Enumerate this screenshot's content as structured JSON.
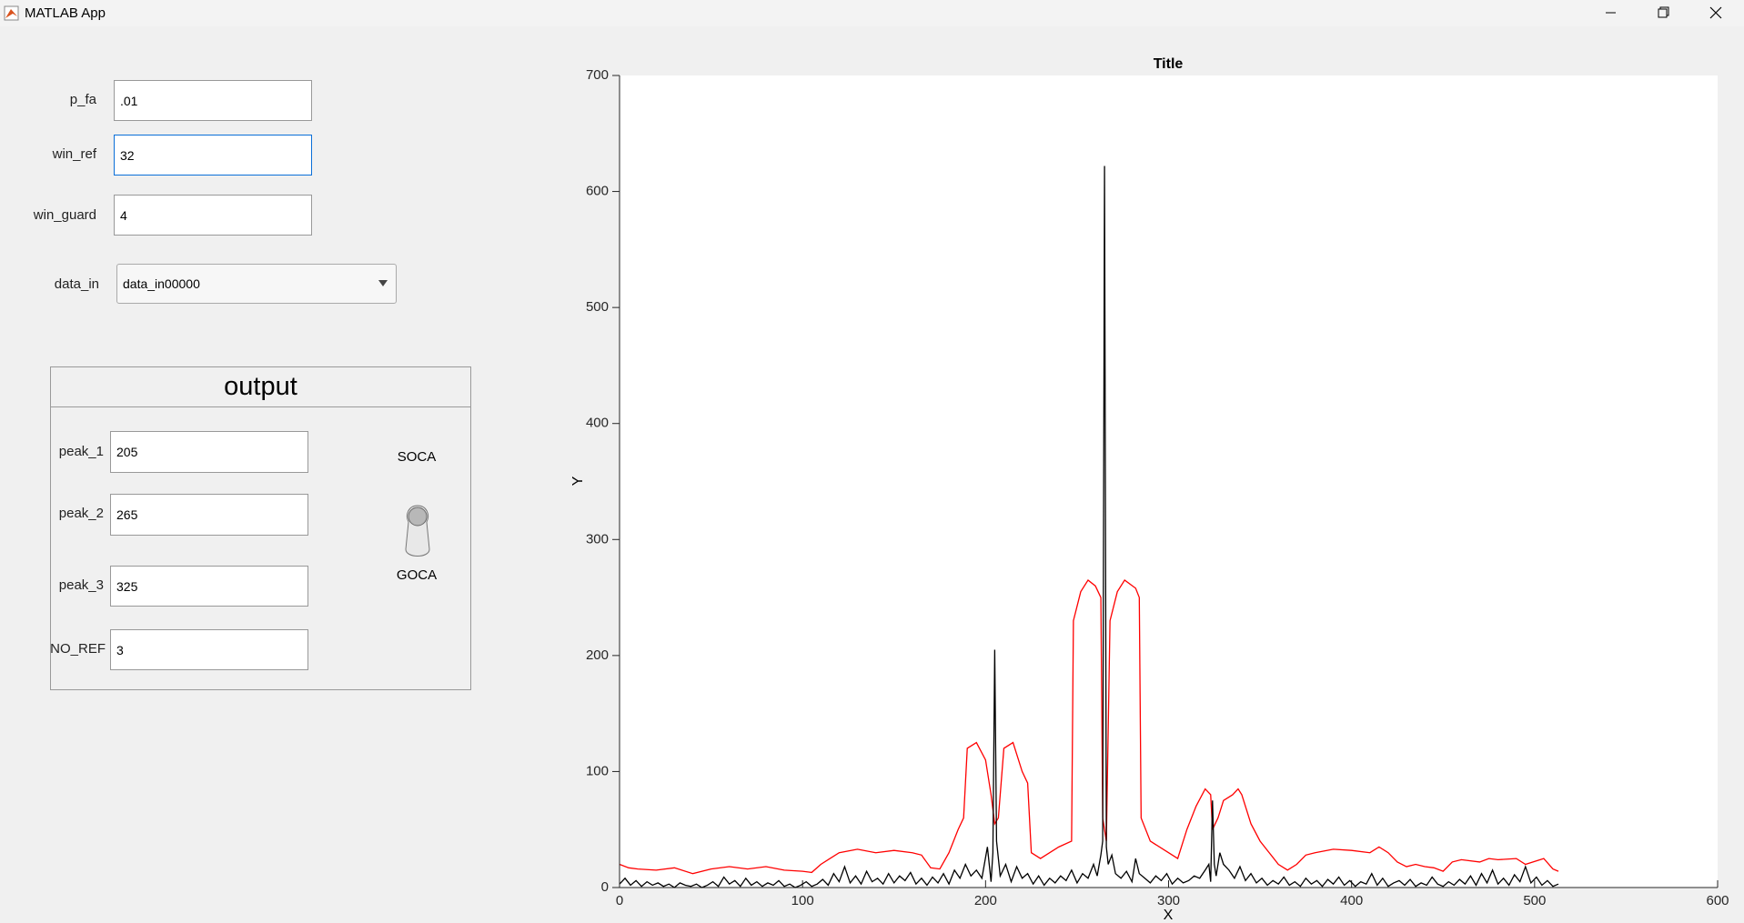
{
  "window": {
    "title": "MATLAB App"
  },
  "form": {
    "fields": [
      {
        "label": "p_fa",
        "value": ".01"
      },
      {
        "label": "win_ref",
        "value": "32"
      },
      {
        "label": "win_guard",
        "value": "4"
      }
    ],
    "dropdown": {
      "label": "data_in",
      "value": "data_in00000"
    }
  },
  "output": {
    "title": "output",
    "fields": [
      {
        "label": "peak_1",
        "value": "205"
      },
      {
        "label": "peak_2",
        "value": "265"
      },
      {
        "label": "peak_3",
        "value": "325"
      },
      {
        "label": "NO_REF",
        "value": "3"
      }
    ],
    "switch": {
      "top": "SOCA",
      "bottom": "GOCA"
    }
  },
  "chart_data": {
    "type": "line",
    "title": "Title",
    "x_label": "X",
    "y_label": "Y",
    "xlim": [
      0,
      600
    ],
    "ylim": [
      0,
      700
    ],
    "xticks": [
      0,
      100,
      200,
      300,
      400,
      500,
      600
    ],
    "yticks": [
      0,
      100,
      200,
      300,
      400,
      500,
      600,
      700
    ],
    "grid": false,
    "series": [
      {
        "color": "#ff0000",
        "x": [
          0,
          5,
          10,
          20,
          30,
          40,
          50,
          60,
          70,
          80,
          90,
          100,
          105,
          110,
          115,
          120,
          130,
          140,
          150,
          160,
          165,
          170,
          175,
          180,
          185,
          188,
          190,
          195,
          200,
          203,
          205,
          207,
          210,
          215,
          220,
          223,
          225,
          230,
          240,
          247,
          248,
          252,
          256,
          260,
          263,
          264,
          266,
          268,
          272,
          276,
          282,
          284,
          285,
          290,
          300,
          305,
          310,
          315,
          320,
          323,
          324,
          327,
          330,
          335,
          338,
          340,
          345,
          350,
          355,
          360,
          365,
          370,
          375,
          380,
          390,
          400,
          410,
          415,
          420,
          425,
          430,
          435,
          440,
          445,
          450,
          455,
          460,
          470,
          475,
          480,
          490,
          495,
          505,
          510,
          513
        ],
        "values": [
          20,
          17,
          16,
          15,
          17,
          12,
          16,
          18,
          16,
          18,
          15,
          14,
          13,
          20,
          25,
          30,
          33,
          30,
          32,
          30,
          28,
          17,
          16,
          30,
          50,
          60,
          120,
          125,
          110,
          80,
          55,
          60,
          120,
          125,
          100,
          90,
          30,
          25,
          35,
          40,
          230,
          255,
          265,
          260,
          250,
          60,
          40,
          230,
          255,
          265,
          258,
          250,
          60,
          40,
          30,
          25,
          50,
          70,
          85,
          80,
          50,
          60,
          75,
          80,
          85,
          80,
          55,
          40,
          30,
          20,
          15,
          20,
          28,
          30,
          33,
          32,
          30,
          35,
          30,
          22,
          18,
          20,
          18,
          17,
          14,
          22,
          24,
          22,
          25,
          24,
          25,
          20,
          25,
          16,
          14
        ]
      },
      {
        "color": "#000000",
        "x": [
          0,
          3,
          6,
          9,
          12,
          15,
          18,
          21,
          24,
          27,
          30,
          33,
          36,
          39,
          42,
          45,
          48,
          51,
          54,
          57,
          60,
          63,
          66,
          69,
          72,
          75,
          78,
          81,
          84,
          87,
          90,
          93,
          96,
          99,
          102,
          105,
          108,
          111,
          114,
          117,
          120,
          123,
          126,
          129,
          132,
          135,
          138,
          141,
          144,
          147,
          150,
          153,
          156,
          159,
          162,
          165,
          168,
          171,
          174,
          177,
          180,
          183,
          186,
          189,
          192,
          195,
          198,
          201,
          203,
          204,
          205,
          206,
          208,
          211,
          214,
          217,
          220,
          223,
          226,
          229,
          232,
          235,
          238,
          241,
          244,
          247,
          250,
          253,
          256,
          259,
          261,
          263,
          264,
          265,
          266,
          267,
          269,
          271,
          274,
          277,
          280,
          282,
          284,
          287,
          290,
          293,
          296,
          299,
          302,
          305,
          308,
          311,
          314,
          317,
          320,
          322,
          323,
          324,
          325,
          326,
          328,
          330,
          333,
          336,
          339,
          342,
          345,
          348,
          351,
          354,
          357,
          360,
          363,
          366,
          369,
          372,
          375,
          378,
          381,
          384,
          387,
          390,
          393,
          396,
          399,
          402,
          405,
          408,
          411,
          414,
          417,
          420,
          423,
          426,
          429,
          432,
          435,
          438,
          441,
          444,
          447,
          450,
          453,
          456,
          459,
          462,
          465,
          468,
          471,
          474,
          477,
          480,
          483,
          486,
          489,
          492,
          495,
          498,
          501,
          504,
          507,
          510,
          513
        ],
        "values": [
          3,
          8,
          2,
          6,
          1,
          5,
          2,
          4,
          1,
          3,
          0,
          4,
          2,
          1,
          3,
          0,
          2,
          5,
          1,
          9,
          3,
          6,
          1,
          8,
          2,
          5,
          1,
          4,
          2,
          6,
          1,
          3,
          0,
          2,
          5,
          1,
          3,
          7,
          2,
          12,
          5,
          18,
          4,
          10,
          3,
          14,
          5,
          8,
          3,
          12,
          4,
          10,
          6,
          13,
          3,
          8,
          2,
          9,
          4,
          12,
          3,
          15,
          8,
          20,
          10,
          15,
          8,
          35,
          5,
          30,
          205,
          40,
          10,
          20,
          5,
          18,
          8,
          12,
          3,
          10,
          2,
          8,
          4,
          10,
          6,
          15,
          4,
          12,
          8,
          20,
          10,
          28,
          40,
          622,
          35,
          20,
          28,
          12,
          8,
          14,
          5,
          25,
          12,
          8,
          4,
          10,
          6,
          12,
          3,
          8,
          4,
          6,
          10,
          8,
          15,
          20,
          5,
          75,
          20,
          10,
          30,
          20,
          15,
          8,
          18,
          6,
          12,
          4,
          8,
          2,
          6,
          3,
          9,
          2,
          5,
          1,
          8,
          3,
          6,
          1,
          7,
          3,
          9,
          2,
          6,
          1,
          5,
          3,
          12,
          2,
          8,
          1,
          4,
          6,
          2,
          7,
          1,
          4,
          2,
          9,
          3,
          1,
          5,
          2,
          7,
          3,
          10,
          2,
          12,
          4,
          15,
          3,
          8,
          2,
          11,
          5,
          18,
          4,
          9,
          2,
          6,
          1,
          3
        ]
      }
    ]
  }
}
